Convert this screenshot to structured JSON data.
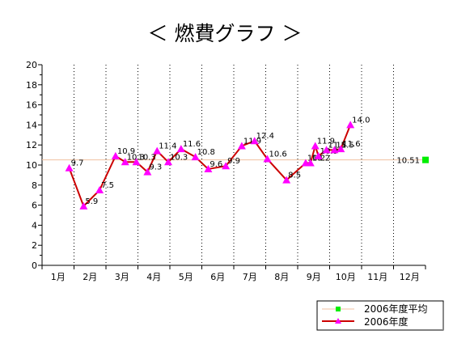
{
  "chart_data": {
    "type": "line",
    "title": "＜ 燃費グラフ ＞",
    "xlabel": "",
    "ylabel": "",
    "ylim": [
      0,
      20
    ],
    "yticks": [
      0,
      2,
      4,
      6,
      8,
      10,
      12,
      14,
      16,
      18,
      20
    ],
    "categories": [
      "1月",
      "2月",
      "3月",
      "4月",
      "5月",
      "6月",
      "7月",
      "8月",
      "9月",
      "10月",
      "11月",
      "12月"
    ],
    "grid": "vertical dotted",
    "legend_position": "bottom-right",
    "series": [
      {
        "name": "2006年度",
        "color": "#cc0000",
        "marker_color": "#ff00ff",
        "marker": "triangle",
        "x": [
          0.85,
          1.3,
          1.8,
          2.3,
          2.6,
          2.95,
          3.3,
          3.6,
          3.95,
          4.35,
          4.8,
          5.2,
          5.75,
          6.25,
          6.65,
          7.05,
          7.65,
          8.25,
          8.4,
          8.55,
          8.65,
          8.9,
          9.15,
          9.35,
          9.65
        ],
        "values": [
          9.7,
          5.9,
          7.5,
          10.9,
          10.3,
          10.3,
          9.3,
          11.4,
          10.3,
          11.6,
          10.8,
          9.6,
          9.9,
          11.9,
          12.4,
          10.6,
          8.5,
          10.2,
          10.2,
          11.9,
          10.9,
          11.5,
          11.5,
          11.6,
          14.0
        ],
        "labels": [
          "9.7",
          "5.9",
          "7.5",
          "10.9",
          "10.3",
          "10.3",
          "9.3",
          "11.4",
          "10.3",
          "11.6",
          "10.8",
          "9.6",
          "9.9",
          "11.9",
          "12.4",
          "10.6",
          "8.5",
          "10.2",
          "10.2",
          "11.9",
          "10.9",
          "11.5",
          "11.5",
          "11.6",
          "14.0"
        ]
      },
      {
        "name": "2006年度平均",
        "color": "#f0c0a0",
        "marker_color": "#00ee00",
        "marker": "square",
        "value": 10.51,
        "label": "10.51"
      }
    ]
  }
}
